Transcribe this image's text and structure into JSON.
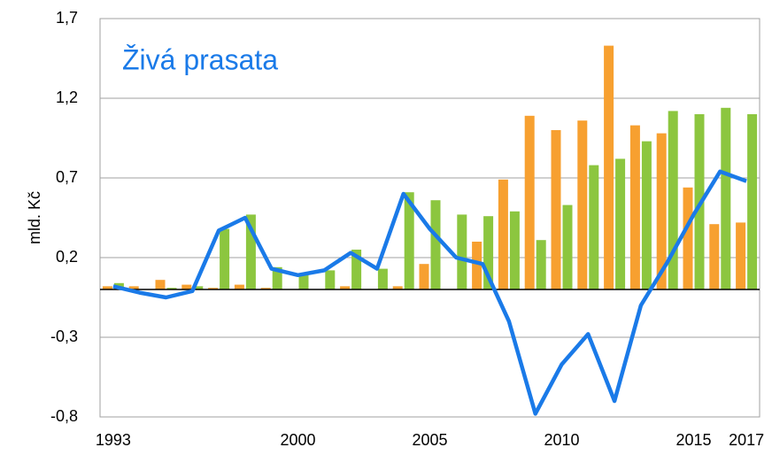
{
  "chart_data": {
    "type": "bar-line",
    "title": "Živá prasata",
    "ylabel": "mld. Kč",
    "categories": [
      "1993",
      null,
      null,
      null,
      null,
      null,
      null,
      "2000",
      null,
      null,
      null,
      null,
      "2005",
      null,
      null,
      null,
      null,
      "2010",
      null,
      null,
      null,
      null,
      "2015",
      null,
      "2017"
    ],
    "series": [
      {
        "type": "bar",
        "color": "#f7a030",
        "values": [
          0.02,
          0.02,
          0.06,
          0.03,
          0.01,
          0.03,
          0.01,
          0,
          0,
          0.02,
          0,
          0.02,
          0.16,
          0,
          0.3,
          0.69,
          1.09,
          1.0,
          1.06,
          1.53,
          1.03,
          0.98,
          0.64,
          0.41,
          0.42
        ]
      },
      {
        "type": "bar",
        "color": "#8cc63f",
        "values": [
          0.04,
          0,
          0.01,
          0.02,
          0.38,
          0.47,
          0.14,
          0.09,
          0.12,
          0.25,
          0.13,
          0.61,
          0.56,
          0.47,
          0.46,
          0.49,
          0.31,
          0.53,
          0.78,
          0.82,
          0.93,
          1.12,
          1.1,
          1.14,
          1.1
        ]
      },
      {
        "type": "line",
        "color": "#1a7ae8",
        "values": [
          0.02,
          -0.02,
          -0.05,
          -0.01,
          0.37,
          0.45,
          0.13,
          0.09,
          0.12,
          0.23,
          0.13,
          0.6,
          0.38,
          0.2,
          0.16,
          -0.2,
          -0.78,
          -0.47,
          -0.28,
          -0.7,
          -0.1,
          0.17,
          0.47,
          0.74,
          0.68
        ]
      }
    ],
    "ylim": [
      -0.8,
      1.7
    ],
    "yticks": [
      {
        "value": -0.8,
        "label": "-0,8"
      },
      {
        "value": -0.3,
        "label": "-0,3"
      },
      {
        "value": 0.2,
        "label": "0,2"
      },
      {
        "value": 0.7,
        "label": "0,7"
      },
      {
        "value": 1.2,
        "label": "1,2"
      },
      {
        "value": 1.7,
        "label": "1,7"
      }
    ],
    "grid": true
  }
}
